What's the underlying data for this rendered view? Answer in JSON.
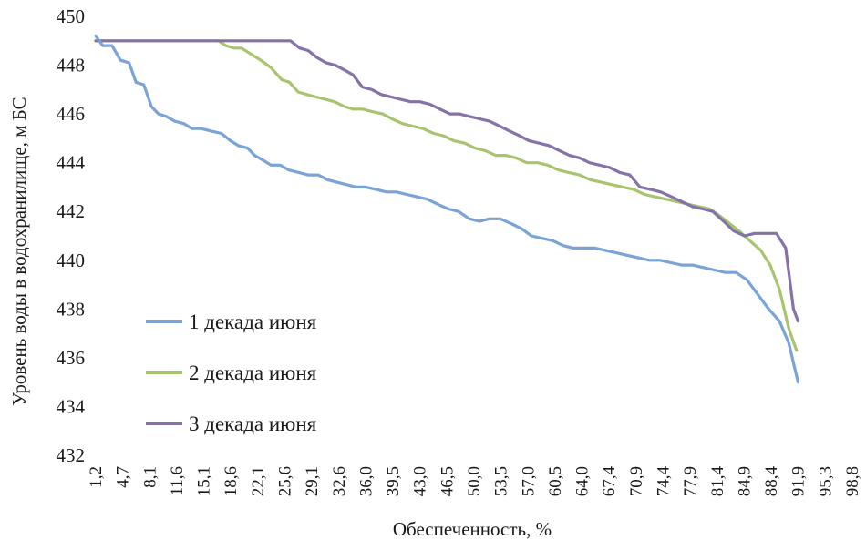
{
  "chart_data": {
    "type": "line",
    "title": "",
    "xlabel": "Обеспеченность, %",
    "ylabel": "Уровень воды в водохранилище, м БС",
    "ylim": [
      432,
      450
    ],
    "yticks": [
      432,
      434,
      436,
      438,
      440,
      442,
      444,
      446,
      448,
      450
    ],
    "xlim": [
      1.2,
      98.8
    ],
    "xticks": [
      "1,2",
      "4,7",
      "8,1",
      "11,6",
      "15,1",
      "18,6",
      "22,1",
      "25,6",
      "29,1",
      "32,6",
      "36,0",
      "39,5",
      "43,0",
      "46,5",
      "50,0",
      "53,5",
      "57,0",
      "60,5",
      "64,0",
      "67,4",
      "70,9",
      "74,4",
      "77,9",
      "81,4",
      "84,9",
      "88,4",
      "91,9",
      "95,3",
      "98,8"
    ],
    "grid": false,
    "legend_position": "left-bottom",
    "series": [
      {
        "name": "1 декада июня",
        "color": "#7aa3d6",
        "points": [
          [
            1.2,
            449.2
          ],
          [
            2.1,
            448.8
          ],
          [
            3.3,
            448.8
          ],
          [
            4.4,
            448.2
          ],
          [
            5.5,
            448.1
          ],
          [
            6.4,
            447.3
          ],
          [
            7.4,
            447.2
          ],
          [
            8.4,
            446.3
          ],
          [
            9.3,
            446.0
          ],
          [
            10.3,
            445.9
          ],
          [
            11.4,
            445.7
          ],
          [
            12.6,
            445.6
          ],
          [
            13.6,
            445.4
          ],
          [
            14.8,
            445.4
          ],
          [
            16.1,
            445.3
          ],
          [
            17.4,
            445.2
          ],
          [
            18.6,
            444.9
          ],
          [
            19.6,
            444.7
          ],
          [
            20.8,
            444.6
          ],
          [
            21.7,
            444.3
          ],
          [
            22.8,
            444.1
          ],
          [
            23.8,
            443.9
          ],
          [
            25.0,
            443.9
          ],
          [
            26.1,
            443.7
          ],
          [
            27.4,
            443.6
          ],
          [
            28.6,
            443.5
          ],
          [
            29.9,
            443.5
          ],
          [
            31.1,
            443.3
          ],
          [
            32.3,
            443.2
          ],
          [
            33.6,
            443.1
          ],
          [
            34.8,
            443.0
          ],
          [
            36.0,
            443.0
          ],
          [
            37.4,
            442.9
          ],
          [
            38.7,
            442.8
          ],
          [
            40.0,
            442.8
          ],
          [
            41.3,
            442.7
          ],
          [
            42.7,
            442.6
          ],
          [
            44.0,
            442.5
          ],
          [
            45.3,
            442.3
          ],
          [
            46.7,
            442.1
          ],
          [
            48.0,
            442.0
          ],
          [
            49.4,
            441.7
          ],
          [
            50.7,
            441.6
          ],
          [
            52.0,
            441.7
          ],
          [
            53.4,
            441.7
          ],
          [
            54.8,
            441.5
          ],
          [
            56.1,
            441.3
          ],
          [
            57.4,
            441.0
          ],
          [
            58.8,
            440.9
          ],
          [
            60.2,
            440.8
          ],
          [
            61.5,
            440.6
          ],
          [
            62.8,
            440.5
          ],
          [
            64.2,
            440.5
          ],
          [
            65.6,
            440.5
          ],
          [
            67.0,
            440.4
          ],
          [
            68.4,
            440.3
          ],
          [
            69.8,
            440.2
          ],
          [
            71.2,
            440.1
          ],
          [
            72.6,
            440.0
          ],
          [
            74.0,
            440.0
          ],
          [
            75.4,
            439.9
          ],
          [
            76.8,
            439.8
          ],
          [
            78.2,
            439.8
          ],
          [
            79.6,
            439.7
          ],
          [
            81.0,
            439.6
          ],
          [
            82.4,
            439.5
          ],
          [
            83.8,
            439.5
          ],
          [
            85.2,
            439.2
          ],
          [
            86.6,
            438.6
          ],
          [
            88.0,
            438.0
          ],
          [
            89.4,
            437.5
          ],
          [
            90.6,
            436.6
          ],
          [
            91.8,
            435.0
          ]
        ]
      },
      {
        "name": "2 декада июня",
        "color": "#a9c46e",
        "points": [
          [
            1.2,
            449.0
          ],
          [
            5.0,
            449.0
          ],
          [
            10.0,
            449.0
          ],
          [
            15.0,
            449.0
          ],
          [
            17.0,
            449.0
          ],
          [
            18.0,
            448.8
          ],
          [
            19.0,
            448.7
          ],
          [
            20.0,
            448.7
          ],
          [
            21.5,
            448.4
          ],
          [
            22.5,
            448.2
          ],
          [
            23.8,
            447.9
          ],
          [
            25.2,
            447.4
          ],
          [
            26.2,
            447.3
          ],
          [
            27.3,
            446.9
          ],
          [
            28.4,
            446.8
          ],
          [
            29.6,
            446.7
          ],
          [
            30.8,
            446.6
          ],
          [
            32.0,
            446.5
          ],
          [
            33.3,
            446.3
          ],
          [
            34.4,
            446.2
          ],
          [
            35.6,
            446.2
          ],
          [
            36.8,
            446.1
          ],
          [
            38.2,
            446.0
          ],
          [
            39.4,
            445.8
          ],
          [
            40.8,
            445.6
          ],
          [
            42.1,
            445.5
          ],
          [
            43.4,
            445.4
          ],
          [
            44.8,
            445.2
          ],
          [
            46.1,
            445.1
          ],
          [
            47.4,
            444.9
          ],
          [
            48.8,
            444.8
          ],
          [
            50.1,
            444.6
          ],
          [
            51.4,
            444.5
          ],
          [
            52.8,
            444.3
          ],
          [
            54.1,
            444.3
          ],
          [
            55.4,
            444.2
          ],
          [
            56.8,
            444.0
          ],
          [
            58.2,
            444.0
          ],
          [
            59.5,
            443.9
          ],
          [
            60.9,
            443.7
          ],
          [
            62.2,
            443.6
          ],
          [
            63.6,
            443.5
          ],
          [
            65.0,
            443.3
          ],
          [
            66.4,
            443.2
          ],
          [
            67.8,
            443.1
          ],
          [
            69.2,
            443.0
          ],
          [
            70.6,
            442.9
          ],
          [
            72.0,
            442.7
          ],
          [
            73.4,
            442.6
          ],
          [
            74.8,
            442.5
          ],
          [
            76.2,
            442.4
          ],
          [
            77.6,
            442.3
          ],
          [
            79.0,
            442.2
          ],
          [
            80.4,
            442.1
          ],
          [
            81.8,
            441.8
          ],
          [
            83.0,
            441.5
          ],
          [
            84.2,
            441.2
          ],
          [
            85.6,
            440.8
          ],
          [
            87.0,
            440.4
          ],
          [
            88.2,
            439.8
          ],
          [
            89.4,
            438.8
          ],
          [
            90.6,
            437.2
          ],
          [
            91.6,
            436.3
          ]
        ]
      },
      {
        "name": "3 декада июня",
        "color": "#8573a8",
        "points": [
          [
            1.2,
            449.0
          ],
          [
            10.0,
            449.0
          ],
          [
            20.0,
            449.0
          ],
          [
            26.3,
            449.0
          ],
          [
            27.5,
            448.7
          ],
          [
            28.6,
            448.6
          ],
          [
            29.8,
            448.3
          ],
          [
            30.9,
            448.1
          ],
          [
            32.1,
            448.0
          ],
          [
            33.3,
            447.8
          ],
          [
            34.4,
            447.6
          ],
          [
            35.6,
            447.1
          ],
          [
            36.8,
            447.0
          ],
          [
            38.0,
            446.8
          ],
          [
            39.3,
            446.7
          ],
          [
            40.5,
            446.6
          ],
          [
            41.8,
            446.5
          ],
          [
            43.0,
            446.5
          ],
          [
            44.3,
            446.4
          ],
          [
            45.6,
            446.2
          ],
          [
            46.9,
            446.0
          ],
          [
            48.1,
            446.0
          ],
          [
            49.4,
            445.9
          ],
          [
            50.7,
            445.8
          ],
          [
            52.0,
            445.7
          ],
          [
            53.3,
            445.5
          ],
          [
            54.6,
            445.3
          ],
          [
            55.9,
            445.1
          ],
          [
            57.1,
            444.9
          ],
          [
            58.4,
            444.8
          ],
          [
            59.7,
            444.7
          ],
          [
            61.0,
            444.5
          ],
          [
            62.3,
            444.3
          ],
          [
            63.6,
            444.2
          ],
          [
            64.9,
            444.0
          ],
          [
            66.2,
            443.9
          ],
          [
            67.5,
            443.8
          ],
          [
            68.8,
            443.6
          ],
          [
            70.1,
            443.5
          ],
          [
            71.4,
            443.0
          ],
          [
            72.8,
            442.9
          ],
          [
            74.1,
            442.8
          ],
          [
            75.5,
            442.6
          ],
          [
            76.8,
            442.4
          ],
          [
            78.2,
            442.2
          ],
          [
            79.5,
            442.1
          ],
          [
            80.8,
            442.0
          ],
          [
            82.2,
            441.6
          ],
          [
            83.5,
            441.2
          ],
          [
            84.9,
            441.0
          ],
          [
            86.2,
            441.1
          ],
          [
            87.6,
            441.1
          ],
          [
            89.0,
            441.1
          ],
          [
            90.2,
            440.5
          ],
          [
            91.2,
            438.0
          ],
          [
            91.8,
            437.5
          ]
        ]
      }
    ]
  }
}
